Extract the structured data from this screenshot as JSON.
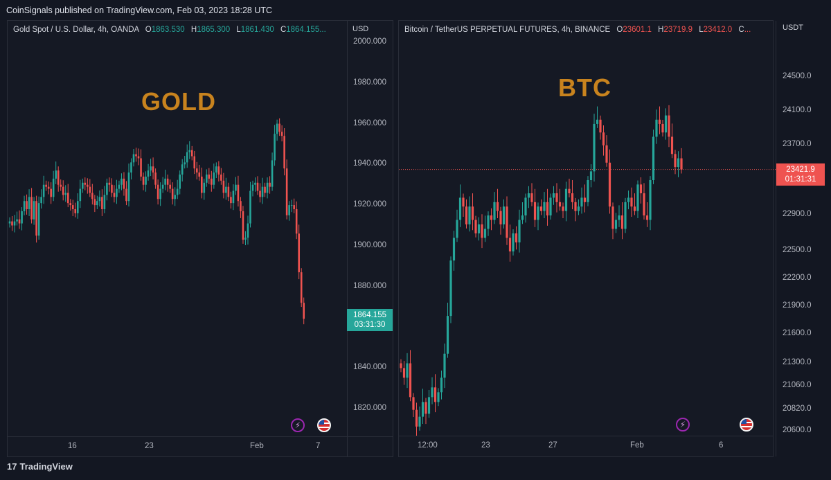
{
  "header": {
    "published": "CoinSignals published on TradingView.com, Feb 03, 2023 18:28 UTC"
  },
  "footer": {
    "logo_mark": "17",
    "brand": "TradingView"
  },
  "colors": {
    "up": "#26a69a",
    "down": "#ef5350",
    "background": "#131722",
    "label": "#c8831e"
  },
  "chart_data": [
    {
      "type": "candlestick",
      "title": "GOLD",
      "symbol": "Gold Spot / U.S. Dollar",
      "interval": "4h",
      "source": "OANDA",
      "ohlc": {
        "o_label": "O",
        "o": "1863.530",
        "h_label": "H",
        "h": "1865.300",
        "l_label": "L",
        "l": "1861.430",
        "c_label": "C",
        "c": "1864.155..."
      },
      "currency": "USD",
      "y_ticks": [
        "2000.000",
        "1980.000",
        "1960.000",
        "1940.000",
        "1920.000",
        "1900.000",
        "1880.000",
        "1840.000",
        "1820.000"
      ],
      "ylim": [
        1810,
        2001
      ],
      "x_ticks": [
        "16",
        "23",
        "Feb",
        "7"
      ],
      "last_price": {
        "price": "1864.155",
        "countdown": "03:31:30",
        "color": "#26a69a"
      },
      "closes": [
        1912,
        1910,
        1912,
        1913,
        1911,
        1917,
        1922,
        1918,
        1924,
        1913,
        1922,
        1905,
        1921,
        1924,
        1930,
        1929,
        1928,
        1924,
        1933,
        1937,
        1930,
        1929,
        1925,
        1926,
        1921,
        1920,
        1918,
        1916,
        1922,
        1928,
        1931,
        1930,
        1929,
        1926,
        1923,
        1920,
        1922,
        1924,
        1918,
        1925,
        1931,
        1930,
        1926,
        1924,
        1928,
        1930,
        1933,
        1928,
        1922,
        1936,
        1941,
        1945,
        1944,
        1943,
        1934,
        1930,
        1934,
        1937,
        1939,
        1936,
        1930,
        1923,
        1928,
        1930,
        1933,
        1930,
        1928,
        1923,
        1925,
        1928,
        1935,
        1940,
        1941,
        1946,
        1947,
        1944,
        1938,
        1936,
        1934,
        1926,
        1931,
        1935,
        1933,
        1930,
        1936,
        1939,
        1935,
        1932,
        1926,
        1929,
        1924,
        1921,
        1927,
        1930,
        1922,
        1917,
        1903,
        1904,
        1911,
        1927,
        1930,
        1931,
        1927,
        1924,
        1929,
        1926,
        1931,
        1929,
        1942,
        1955,
        1960,
        1956,
        1954,
        1938,
        1915,
        1920,
        1920,
        1918,
        1906,
        1887,
        1872,
        1864.155
      ]
    },
    {
      "type": "candlestick",
      "title": "BTC",
      "symbol": "Bitcoin / TetherUS PERPETUAL FUTURES",
      "interval": "4h",
      "source": "BINANCE",
      "ohlc": {
        "o_label": "O",
        "o": "23601.1",
        "h_label": "H",
        "h": "23719.9",
        "l_label": "L",
        "l": "23412.0",
        "c_label": "C",
        "c": "..."
      },
      "currency": "USDT",
      "y_ticks": [
        "24500.0",
        "24100.0",
        "23700.0",
        "22900.0",
        "22500.0",
        "22200.0",
        "21900.0",
        "21600.0",
        "21300.0",
        "21060.0",
        "20820.0",
        "20600.0"
      ],
      "x_ticks": [
        "12:00",
        "23",
        "27",
        "Feb",
        "6"
      ],
      "last_price": {
        "price": "23421.9",
        "countdown": "01:31:31",
        "color": "#ef5350"
      },
      "closes": [
        21250,
        21150,
        21300,
        20950,
        20820,
        20650,
        20750,
        20900,
        20780,
        20950,
        21050,
        20900,
        21000,
        21150,
        21400,
        21800,
        22400,
        22650,
        22850,
        23100,
        23000,
        22800,
        23000,
        22850,
        22700,
        22800,
        22650,
        22750,
        22900,
        22850,
        23050,
        22950,
        22800,
        23000,
        22650,
        22500,
        22700,
        22600,
        22850,
        22900,
        23100,
        23150,
        23050,
        22850,
        23000,
        22950,
        23050,
        22900,
        23100,
        23150,
        23050,
        23000,
        22950,
        23200,
        23150,
        23050,
        22950,
        23000,
        23100,
        23050,
        23300,
        23400,
        23950,
        24000,
        23850,
        23700,
        23500,
        23000,
        22750,
        22850,
        22900,
        22750,
        23050,
        23100,
        23000,
        22950,
        23250,
        23150,
        22900,
        22850,
        23300,
        23800,
        24000,
        23950,
        23850,
        24050,
        23800,
        23600,
        23450,
        23550,
        23421.9
      ]
    }
  ]
}
